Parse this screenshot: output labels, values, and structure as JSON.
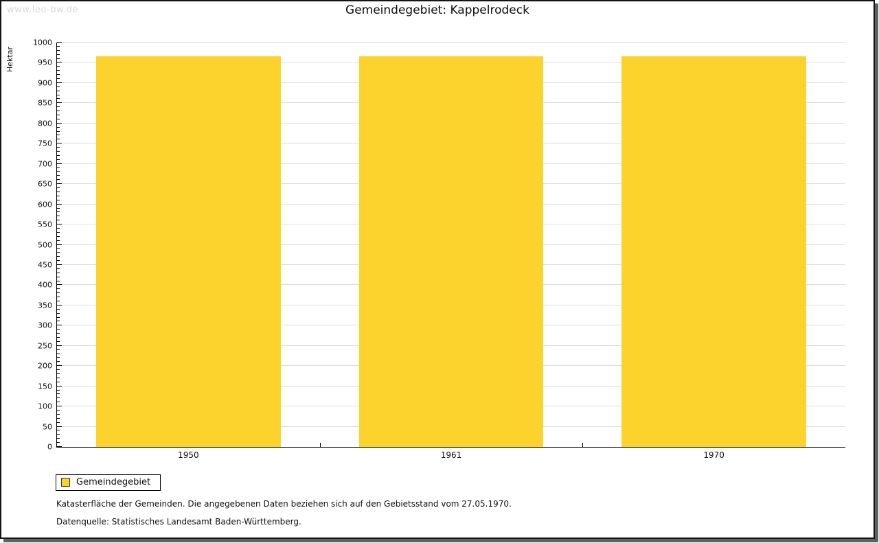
{
  "watermark": "www.leo-bw.de",
  "title": "Gemeindegebiet: Kappelrodeck",
  "chart_data": {
    "type": "bar",
    "title": "Gemeindegebiet: Kappelrodeck",
    "categories": [
      "1950",
      "1961",
      "1970"
    ],
    "series": [
      {
        "name": "Gemeindegebiet",
        "values": [
          966,
          966,
          966
        ]
      }
    ],
    "xlabel": "",
    "ylabel": "Hektar",
    "ylim": [
      0,
      1000
    ],
    "ytick_step": 50,
    "minor_tick_step": 10,
    "grid": true,
    "legend_position": "bottom-left",
    "bar_color": "#fcd32d",
    "grid_color": "#dcdcdc",
    "axis_color": "#000000",
    "bar_width_fraction": 0.702
  },
  "legend": {
    "items": [
      {
        "label": "Gemeindegebiet",
        "color": "#fcd32d"
      }
    ]
  },
  "footnotes": [
    "Katasterfläche der Gemeinden. Die angegebenen Daten beziehen sich auf den Gebietsstand vom 27.05.1970.",
    "Datenquelle: Statistisches Landesamt Baden-Württemberg."
  ]
}
